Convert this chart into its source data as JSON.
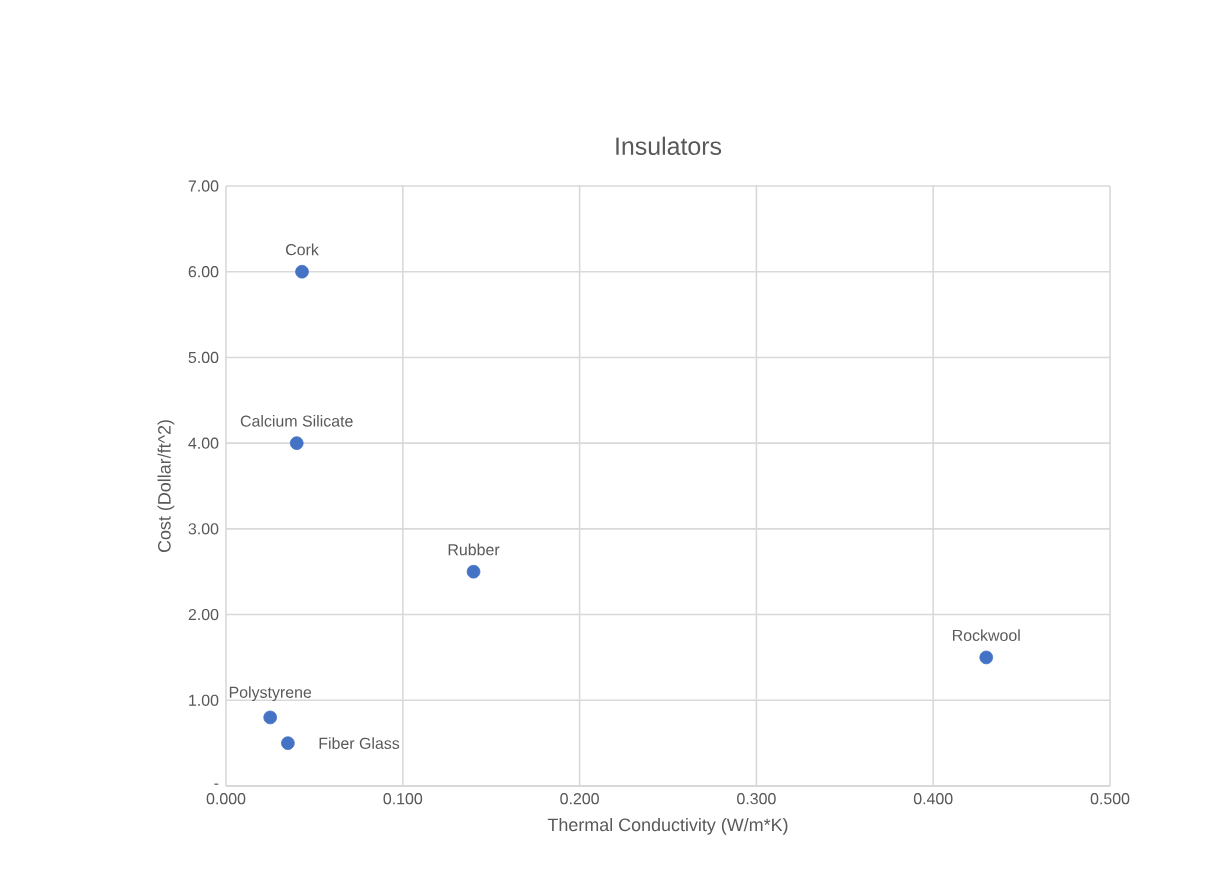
{
  "chart_data": {
    "type": "scatter",
    "title": "Insulators",
    "xlabel": "Thermal Conductivity (W/m*K)",
    "ylabel": "Cost (Dollar/ft^2)",
    "series": [
      {
        "color": "#4472c4",
        "x": [
          0.043,
          0.04,
          0.14,
          0.025,
          0.035,
          0.43
        ],
        "values": [
          6.0,
          4.0,
          2.5,
          0.8,
          0.5,
          1.5
        ]
      }
    ],
    "annotations": [
      {
        "text": "Cork",
        "x": 0.043,
        "y": 6.0
      },
      {
        "text": "Calcium Silicate",
        "x": 0.04,
        "y": 4.0
      },
      {
        "text": "Rubber",
        "x": 0.14,
        "y": 2.5
      },
      {
        "text": "Polystyrene",
        "x": 0.025,
        "y": 0.8
      },
      {
        "text": "Fiber Glass",
        "x": 0.035,
        "y": 0.5
      },
      {
        "text": "Rockwool",
        "x": 0.43,
        "y": 1.5
      }
    ],
    "xlim": [
      0,
      0.5
    ],
    "ylim": [
      0,
      7
    ],
    "xticks": [
      {
        "value": 0,
        "label": "0.000"
      },
      {
        "value": 0.1,
        "label": "0.100"
      },
      {
        "value": 0.2,
        "label": "0.200"
      },
      {
        "value": 0.3,
        "label": "0.300"
      },
      {
        "value": 0.4,
        "label": "0.400"
      },
      {
        "value": 0.5,
        "label": "0.500"
      }
    ],
    "yticks": [
      {
        "value": 0,
        "label": "-"
      },
      {
        "value": 1,
        "label": "1.00"
      },
      {
        "value": 2,
        "label": "2.00"
      },
      {
        "value": 3,
        "label": "3.00"
      },
      {
        "value": 4,
        "label": "4.00"
      },
      {
        "value": 5,
        "label": "5.00"
      },
      {
        "value": 6,
        "label": "6.00"
      },
      {
        "value": 7,
        "label": "7.00"
      }
    ],
    "grid": true
  }
}
